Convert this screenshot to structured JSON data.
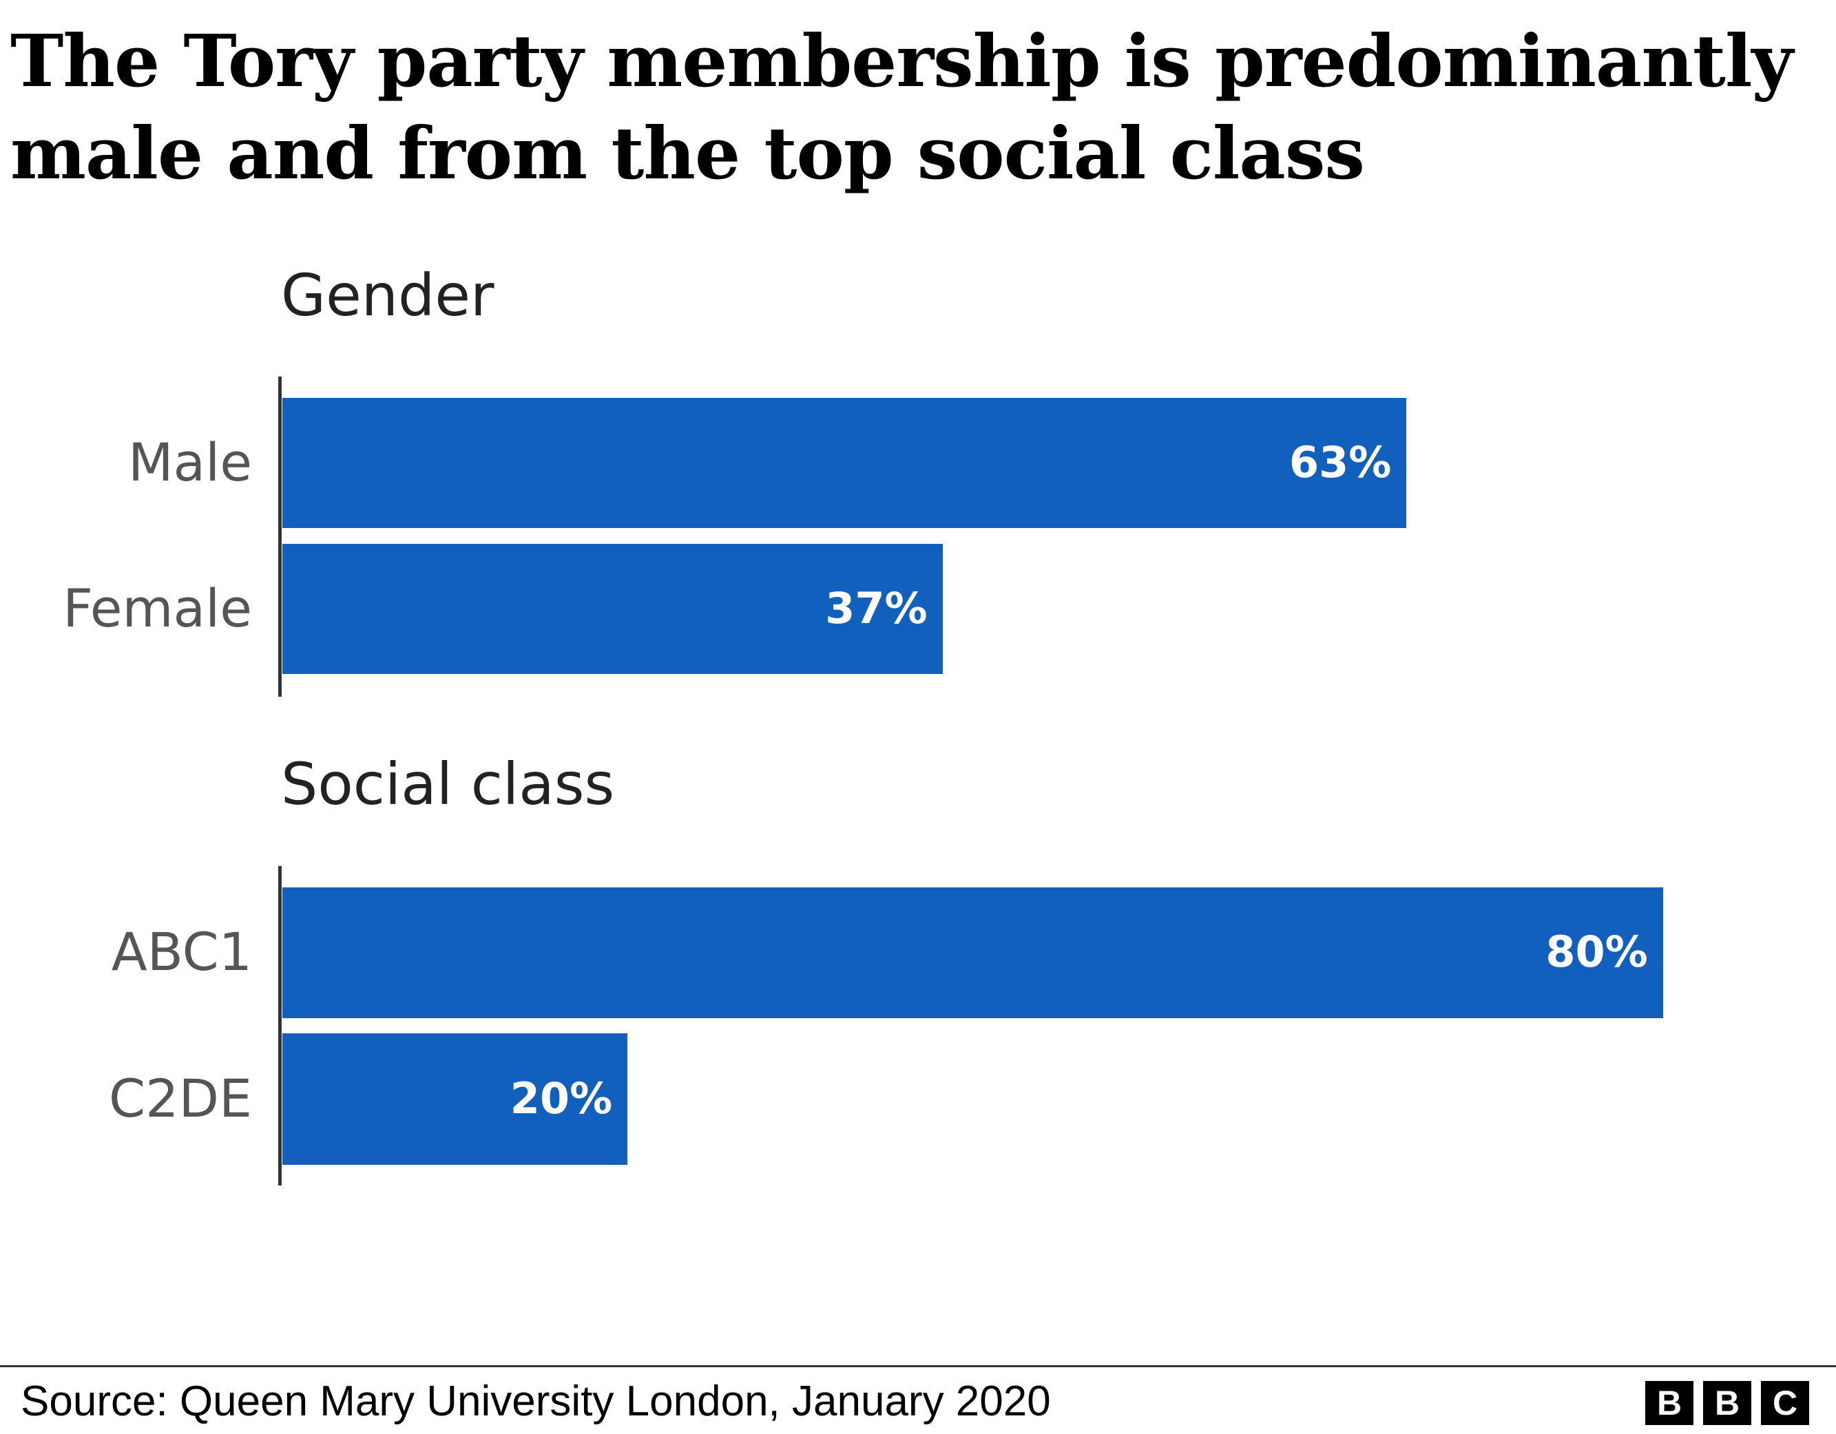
{
  "chart_data": [
    {
      "type": "bar",
      "orientation": "horizontal",
      "title": "Gender",
      "categories": [
        "Male",
        "Female"
      ],
      "values": [
        63,
        37
      ],
      "labels": [
        "63%",
        "37%"
      ],
      "xlim": [
        0,
        100
      ]
    },
    {
      "type": "bar",
      "orientation": "horizontal",
      "title": "Social class",
      "categories": [
        "ABC1",
        "C2DE"
      ],
      "values": [
        80,
        20
      ],
      "labels": [
        "80%",
        "20%"
      ],
      "xlim": [
        0,
        100
      ]
    }
  ],
  "title": "The Tory party membership is predominantly male and from the top social class",
  "source": "Source: Queen Mary University London, January 2020",
  "logo": [
    "B",
    "B",
    "C"
  ],
  "colors": {
    "bar": "#1160be"
  }
}
